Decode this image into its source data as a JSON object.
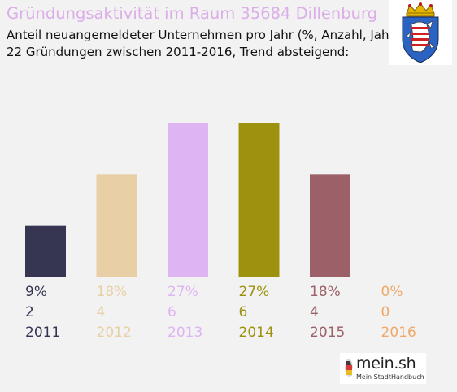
{
  "header": {
    "title": "Gründungsaktivität im Raum 35684 Dillenburg",
    "subtitle_line1": "Anteil neuangemeldeter Unternehmen pro Jahr (%, Anzahl, Jahr)",
    "subtitle_line2": "22 Gründungen zwischen 2011-2016, Trend absteigend:"
  },
  "crest": {
    "icon": "hessen-lion-crest-icon"
  },
  "logo": {
    "text": "mein.sh",
    "tagline": "Mein StadtHandbuch"
  },
  "chart_data": {
    "type": "bar",
    "categories": [
      "2011",
      "2012",
      "2013",
      "2014",
      "2015",
      "2016"
    ],
    "values": [
      9,
      18,
      27,
      27,
      18,
      0
    ],
    "percent_labels": [
      "9%",
      "18%",
      "27%",
      "27%",
      "18%",
      "0%"
    ],
    "count_labels": [
      "2",
      "4",
      "6",
      "6",
      "4",
      "0"
    ],
    "colors": [
      "#363652",
      "#e9cfa5",
      "#dfb4f2",
      "#9e910e",
      "#9c6068",
      "#f0a868"
    ],
    "ylim": [
      0,
      27
    ],
    "grid": false,
    "legend": "none"
  }
}
